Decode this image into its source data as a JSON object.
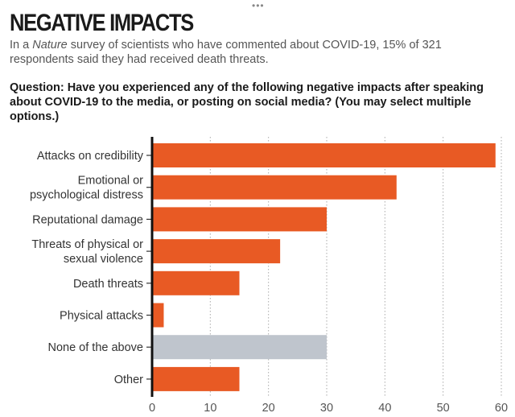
{
  "header": {
    "more_icon": "ellipsis-icon",
    "title": "NEGATIVE IMPACTS",
    "subtitle_pre": "In a ",
    "subtitle_italic": "Nature",
    "subtitle_post": " survey of scientists who have commented about COVID-19, 15% of 321 respondents said they had received death threats.",
    "question": "Question: Have you experienced any of the following negative impacts after speaking about COVID-19 to the media, or posting on social media? (You may select multiple options.)"
  },
  "colors": {
    "primary": "#e85a24",
    "none_bar": "#bfc5cd",
    "axis": "#111111",
    "grid": "#aaaaaa"
  },
  "chart_data": {
    "type": "bar",
    "orientation": "horizontal",
    "title": "NEGATIVE IMPACTS",
    "xlabel": "",
    "ylabel": "",
    "xlim": [
      0,
      60
    ],
    "xticks": [
      0,
      10,
      20,
      30,
      40,
      50,
      60
    ],
    "grid": "vertical dotted",
    "categories": [
      [
        "Attacks on credibility"
      ],
      [
        "Emotional or",
        "psychological distress"
      ],
      [
        "Reputational damage"
      ],
      [
        "Threats of physical or",
        "sexual violence"
      ],
      [
        "Death threats"
      ],
      [
        "Physical attacks"
      ],
      [
        "None of the above"
      ],
      [
        "Other"
      ]
    ],
    "values": [
      59,
      42,
      30,
      22,
      15,
      2,
      30,
      15
    ],
    "highlight": [
      false,
      false,
      false,
      false,
      false,
      false,
      true,
      false
    ]
  }
}
